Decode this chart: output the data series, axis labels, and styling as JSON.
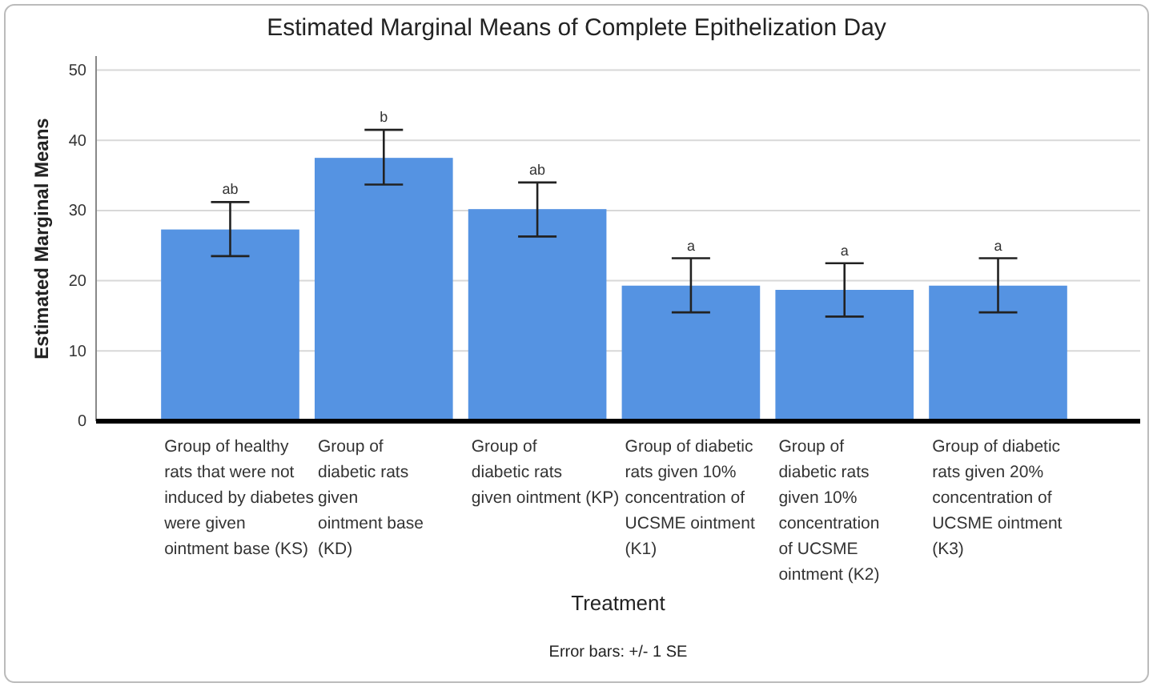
{
  "chart_data": {
    "type": "bar",
    "title": "Estimated Marginal Means of Complete Epithelization Day",
    "xlabel": "Treatment",
    "ylabel": "Estimated Marginal Means",
    "categories": [
      "Group of healthy\nrats that were not\ninduced by diabetes\nwere given\nointment base (KS)",
      "Group of\ndiabetic rats\ngiven\nointment base\n(KD)",
      "Group of\ndiabetic rats\ngiven ointment (KP)",
      "Group of diabetic\nrats given 10%\nconcentration of\nUCSME ointment\n(K1)",
      "Group of\ndiabetic rats\ngiven 10%\nconcentration\nof UCSME\nointment (K2)",
      "Group of diabetic\nrats given 20%\nconcentration of\nUCSME ointment\n(K3)"
    ],
    "values": [
      27.3,
      37.5,
      30.2,
      19.3,
      18.7,
      19.3
    ],
    "errors": [
      [
        23.5,
        31.2
      ],
      [
        33.7,
        41.5
      ],
      [
        26.3,
        34.0
      ],
      [
        15.5,
        23.2
      ],
      [
        14.9,
        22.5
      ],
      [
        15.5,
        23.2
      ]
    ],
    "color": "#5593e2",
    "ylim": [
      0,
      52
    ],
    "yticks": [
      0,
      10,
      20,
      30,
      40,
      50
    ],
    "grid": "y",
    "annotations": [
      {
        "text": "ab",
        "x": "Group of healthy\nrats that were not\ninduced by diabetes\nwere given\nointment base (KS)",
        "y": 31.2
      },
      {
        "text": "b",
        "x": "Group of\ndiabetic rats\ngiven\nointment base\n(KD)",
        "y": 41.5
      },
      {
        "text": "ab",
        "x": "Group of\ndiabetic rats\ngiven ointment (KP)",
        "y": 34.0
      },
      {
        "text": "a",
        "x": "Group of diabetic\nrats given 10%\nconcentration of\nUCSME ointment\n(K1)",
        "y": 23.2
      },
      {
        "text": "a",
        "x": "Group of\ndiabetic rats\ngiven 10%\nconcentration\nof UCSME\nointment (K2)",
        "y": 22.5
      },
      {
        "text": "a",
        "x": "Group of diabetic\nrats given 20%\nconcentration of\nUCSME ointment\n(K3)",
        "y": 23.2
      },
      "Error bars: +/- 1 SE"
    ]
  }
}
